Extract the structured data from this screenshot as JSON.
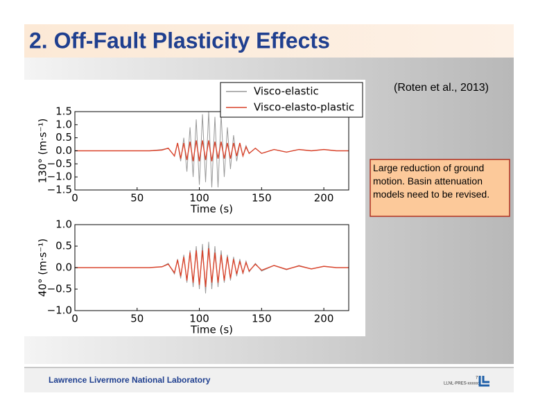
{
  "header": {
    "title": "2. Off-Fault Plasticity Effects"
  },
  "citation": "(Roten et al., 2013)",
  "note": "Large reduction of ground motion. Basin attenuation models need to be revised.",
  "footer": {
    "lab": "Lawrence Livermore National Laboratory",
    "page": "7",
    "code": "LLNL-PRES-xxxxxx"
  },
  "chart_data": [
    {
      "type": "line",
      "xlabel": "Time (s)",
      "ylabel": "130° (m·s⁻¹)",
      "legend": "upper right",
      "x": [
        0,
        50,
        60,
        70,
        75,
        80,
        82.5,
        85,
        87.5,
        90,
        92.5,
        95,
        97.5,
        100,
        102.5,
        105,
        107.5,
        110,
        112.5,
        115,
        117.5,
        120,
        122.5,
        125,
        127.5,
        130,
        132.5,
        135,
        137.5,
        140,
        145,
        150,
        160,
        170,
        180,
        190,
        200,
        210,
        220
      ],
      "series": [
        {
          "name": "Visco-elastic",
          "color": "#999999",
          "values": [
            0,
            0,
            0,
            0.05,
            0.1,
            -0.2,
            0.3,
            -0.4,
            0.5,
            -0.8,
            0.9,
            -1.0,
            1.2,
            -1.3,
            1.4,
            -1.2,
            1.5,
            -1.4,
            1.3,
            -1.4,
            1.4,
            -1.0,
            0.9,
            -0.7,
            0.6,
            -0.4,
            0.3,
            -0.2,
            0.2,
            -0.1,
            0.1,
            -0.1,
            0.05,
            -0.05,
            0.05,
            0,
            0.05,
            0,
            0
          ]
        },
        {
          "name": "Visco-elasto-plastic",
          "color": "#d9432b",
          "values": [
            0,
            0,
            0,
            0.03,
            0.1,
            -0.2,
            0.3,
            -0.3,
            0.3,
            -0.35,
            0.35,
            -0.4,
            0.4,
            -0.4,
            0.4,
            -0.35,
            0.4,
            -0.4,
            0.35,
            -0.3,
            0.35,
            -0.3,
            0.3,
            -0.3,
            0.3,
            -0.2,
            0.3,
            -0.2,
            0.15,
            -0.1,
            0.1,
            -0.1,
            0.05,
            -0.05,
            0.05,
            0,
            0.05,
            0,
            0
          ]
        }
      ],
      "xlim": [
        0,
        220
      ],
      "ylim": [
        -1.5,
        1.5
      ],
      "xticks": [
        0,
        50,
        100,
        150,
        200
      ],
      "yticks": [
        1.5,
        {
          "value": 1,
          "label": "1.0"
        },
        0.5,
        {
          "value": 0,
          "label": "0.0"
        },
        {
          "value": -0.5,
          "label": "−0.5"
        },
        {
          "value": -1,
          "label": "−1.0"
        },
        {
          "value": -1.5,
          "label": "−1.5"
        }
      ]
    },
    {
      "type": "line",
      "xlabel": "Time (s)",
      "ylabel": "40° (m·s⁻¹)",
      "x": [
        0,
        50,
        60,
        70,
        75,
        80,
        82.5,
        85,
        87.5,
        90,
        92.5,
        95,
        97.5,
        100,
        102.5,
        105,
        107.5,
        110,
        112.5,
        115,
        117.5,
        120,
        122.5,
        125,
        127.5,
        130,
        132.5,
        135,
        137.5,
        140,
        145,
        150,
        160,
        170,
        180,
        190,
        200,
        210,
        220
      ],
      "series": [
        {
          "color": "#999999",
          "values": [
            0,
            0,
            0,
            0.02,
            0.1,
            -0.15,
            0.2,
            -0.25,
            0.3,
            -0.35,
            0.4,
            -0.45,
            0.5,
            -0.5,
            0.55,
            -0.6,
            0.6,
            -0.5,
            0.5,
            -0.45,
            0.4,
            -0.35,
            0.3,
            -0.3,
            0.25,
            -0.2,
            0.2,
            -0.15,
            0.15,
            -0.1,
            0.1,
            -0.08,
            0.05,
            -0.05,
            0.05,
            -0.03,
            0.03,
            0,
            0
          ]
        },
        {
          "color": "#d9432b",
          "values": [
            0,
            0,
            0,
            0.02,
            0.08,
            -0.12,
            0.18,
            -0.2,
            0.25,
            -0.3,
            0.35,
            -0.35,
            0.4,
            -0.4,
            0.4,
            -0.45,
            0.45,
            -0.35,
            0.35,
            -0.35,
            0.3,
            -0.3,
            0.25,
            -0.25,
            0.2,
            -0.15,
            0.15,
            -0.12,
            0.12,
            -0.08,
            0.08,
            -0.06,
            0.05,
            -0.04,
            0.04,
            -0.03,
            0.03,
            0,
            0
          ]
        }
      ],
      "xlim": [
        0,
        220
      ],
      "ylim": [
        -1,
        1
      ],
      "xticks": [
        0,
        50,
        100,
        150,
        200
      ],
      "yticks": [
        {
          "value": 1,
          "label": "1.0"
        },
        0.5,
        {
          "value": 0,
          "label": "0.0"
        },
        {
          "value": -0.5,
          "label": "−0.5"
        },
        {
          "value": -1,
          "label": "−1.0"
        }
      ]
    }
  ]
}
